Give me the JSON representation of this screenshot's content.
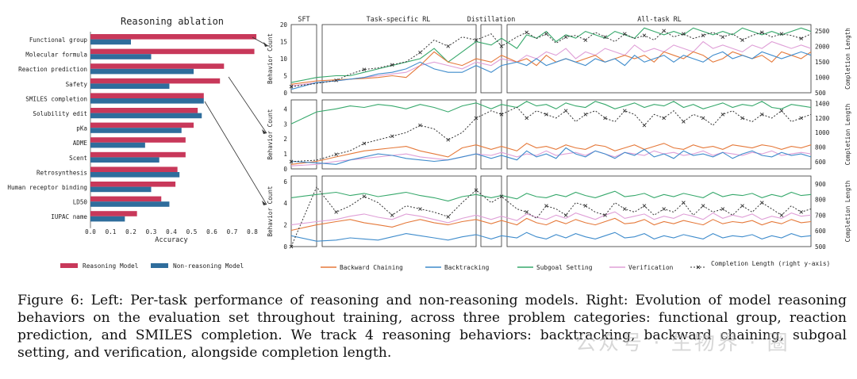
{
  "caption": "Figure 6: Left: Per-task performance of reasoning and non-reasoning models. Right: Evolution of model reasoning behaviors on the evaluation set throughout training, across three problem categories: functional group, reaction prediction, and SMILES completion. We track 4 reasoning behaviors: backtracking, backward chaining, subgoal setting, and verification, alongside completion length.",
  "watermark": "公众号 · 生物界 · 圈",
  "colors": {
    "reasoning": "#c8385a",
    "nonreasoning": "#2f6d9c",
    "backward": "#e5793a",
    "backtracking": "#3f8ccc",
    "subgoal": "#36a86b",
    "verification": "#df9fd7",
    "completion": "#333333"
  },
  "chart_data": [
    {
      "type": "bar",
      "title": "Reasoning ablation",
      "xlabel": "Accuracy",
      "xlim": [
        0.0,
        0.8
      ],
      "xticks": [
        "0.0",
        "0.1",
        "0.2",
        "0.3",
        "0.4",
        "0.5",
        "0.6",
        "0.7",
        "0.8"
      ],
      "categories": [
        "Functional group",
        "Molecular formula",
        "Reaction prediction",
        "Safety",
        "SMILES completion",
        "Solubility edit",
        "pKa",
        "ADME",
        "Scent",
        "Retrosynthesis",
        "Human receptor binding",
        "LD50",
        "IUPAC name"
      ],
      "series": [
        {
          "name": "Reasoning Model",
          "values": [
            0.82,
            0.81,
            0.66,
            0.64,
            0.56,
            0.53,
            0.51,
            0.47,
            0.47,
            0.43,
            0.42,
            0.35,
            0.23
          ]
        },
        {
          "name": "Non-reasoning Model",
          "values": [
            0.2,
            0.3,
            0.51,
            0.39,
            0.56,
            0.55,
            0.45,
            0.27,
            0.34,
            0.44,
            0.3,
            0.39,
            0.17
          ]
        }
      ],
      "legend": "bottom"
    },
    {
      "type": "line",
      "phases": [
        "SFT",
        "Task-specific RL",
        "Distillation",
        "All-task RL"
      ],
      "ylabel": "Behavior Count",
      "ylabel_right": "Completion Length",
      "legend": [
        "Backward Chaining",
        "Backtracking",
        "Subgoal Setting",
        "Verification",
        "Completion Length (right y-axis)"
      ],
      "rows": [
        {
          "yticks": [
            "0",
            "5",
            "10",
            "15",
            "20"
          ],
          "ylim": [
            0,
            20
          ],
          "y2ticks": [
            "500",
            "1000",
            "1500",
            "2000",
            "2500"
          ],
          "y2lim": [
            500,
            2700
          ],
          "series": {
            "backward": [
              2.5,
              3.5,
              3.8,
              4,
              4.2,
              4.5,
              5,
              4.5,
              8,
              12,
              9,
              8,
              10,
              9,
              11,
              9,
              10,
              8,
              11,
              9,
              10,
              9,
              10,
              11,
              9,
              10,
              11,
              10,
              11,
              9,
              12,
              11,
              10,
              12,
              11,
              9,
              10,
              12,
              11,
              10,
              11,
              9,
              12,
              11,
              10,
              12
            ],
            "backtracking": [
              1,
              3,
              3.5,
              4,
              4.5,
              5.5,
              6,
              7,
              9,
              7,
              6,
              6,
              8,
              6,
              8,
              9,
              8,
              10,
              8,
              9,
              10,
              9,
              8,
              10,
              9,
              10,
              8,
              11,
              9,
              10,
              11,
              9,
              11,
              10,
              9,
              11,
              12,
              10,
              11,
              10,
              12,
              11,
              10,
              11,
              12,
              11
            ],
            "subgoal": [
              3,
              4.5,
              5,
              5,
              6,
              7,
              8,
              9,
              10,
              13,
              9,
              12,
              15,
              14,
              16,
              13,
              17,
              16,
              18,
              15,
              17,
              16,
              18,
              17,
              16,
              18,
              17,
              16,
              19,
              18,
              17,
              18,
              17,
              19,
              18,
              17,
              18,
              17,
              19,
              18,
              17,
              18,
              17,
              18,
              19,
              18
            ],
            "verification": [
              2,
              3,
              3.5,
              4,
              4.5,
              5,
              5.5,
              6,
              8,
              9,
              8,
              7,
              9,
              8,
              10,
              9,
              11,
              10,
              12,
              11,
              13,
              10,
              12,
              11,
              13,
              12,
              11,
              14,
              12,
              13,
              12,
              14,
              13,
              12,
              15,
              13,
              14,
              13,
              12,
              14,
              13,
              15,
              14,
              13,
              14,
              13
            ],
            "completion": [
              700,
              800,
              900,
              1100,
              1250,
              1300,
              1400,
              1500,
              1800,
              2200,
              2000,
              2300,
              2200,
              2400,
              2000,
              2300,
              2450,
              2250,
              2400,
              2100,
              2300,
              2350,
              2200,
              2450,
              2300,
              2150,
              2400,
              2250,
              2350,
              2200,
              2500,
              2300,
              2400,
              2250,
              2350,
              2450,
              2300,
              2400,
              2200,
              2350,
              2450,
              2300,
              2400,
              2350,
              2250,
              2400
            ]
          }
        },
        {
          "yticks": [
            "0",
            "1",
            "2",
            "3",
            "4"
          ],
          "ylim": [
            0,
            4.6
          ],
          "y2ticks": [
            "600",
            "800",
            "1000",
            "1200",
            "1400"
          ],
          "y2lim": [
            500,
            1450
          ],
          "series": {
            "backward": [
              0.3,
              0.5,
              0.8,
              1,
              1.2,
              1.3,
              1.4,
              1.5,
              1.2,
              1,
              0.8,
              1.4,
              1.6,
              1.3,
              1.5,
              1.2,
              1.7,
              1.4,
              1.5,
              1.3,
              1.6,
              1.4,
              1.3,
              1.6,
              1.5,
              1.2,
              1.4,
              1.6,
              1.3,
              1.5,
              1.7,
              1.4,
              1.3,
              1.6,
              1.4,
              1.5,
              1.3,
              1.6,
              1.5,
              1.4,
              1.6,
              1.5,
              1.3,
              1.5,
              1.4,
              1.6
            ],
            "backtracking": [
              0.5,
              0.4,
              0.3,
              0.6,
              0.8,
              1,
              0.9,
              0.7,
              0.6,
              0.5,
              0.6,
              0.8,
              1,
              0.7,
              0.9,
              0.6,
              1.2,
              0.8,
              1,
              0.7,
              1.4,
              1,
              0.8,
              1.2,
              1,
              0.7,
              1.1,
              0.9,
              1.3,
              0.8,
              1,
              0.7,
              1.2,
              0.9,
              1,
              0.8,
              1.1,
              0.7,
              1,
              1.2,
              0.9,
              0.8,
              1.1,
              0.9,
              1,
              0.8
            ],
            "subgoal": [
              3,
              3.8,
              4,
              4.2,
              4.1,
              4.3,
              4.2,
              4,
              4.3,
              4.1,
              3.8,
              4.2,
              4.4,
              4,
              4.3,
              4.1,
              4.5,
              4.2,
              4.3,
              4,
              4.4,
              4.2,
              4.1,
              4.5,
              4.3,
              4,
              4.2,
              4.4,
              4.1,
              4.3,
              4.2,
              4.5,
              4.1,
              4.3,
              4,
              4.2,
              4.4,
              4.1,
              4.3,
              4.2,
              4.5,
              4.1,
              4,
              4.3,
              4.2,
              4.1
            ],
            "verification": [
              0.2,
              0.3,
              0.5,
              0.6,
              0.7,
              0.8,
              0.9,
              1,
              0.8,
              0.7,
              0.6,
              0.8,
              1,
              0.9,
              1.1,
              0.8,
              1,
              0.9,
              1.2,
              0.9,
              1,
              1.1,
              0.9,
              1.2,
              1,
              0.8,
              1.1,
              1,
              0.9,
              1.2,
              1,
              1.1,
              0.9,
              1,
              1.2,
              0.9,
              1.1,
              1,
              0.9,
              1.1,
              1,
              1.2,
              0.9,
              1,
              1.1,
              1
            ],
            "completion": [
              600,
              620,
              700,
              750,
              850,
              900,
              950,
              1000,
              1100,
              1050,
              900,
              1000,
              1200,
              1300,
              1250,
              1350,
              1200,
              1300,
              1250,
              1200,
              1300,
              1150,
              1250,
              1300,
              1200,
              1150,
              1300,
              1250,
              1100,
              1250,
              1200,
              1300,
              1150,
              1250,
              1200,
              1100,
              1250,
              1300,
              1200,
              1150,
              1250,
              1200,
              1300,
              1150,
              1200,
              1250
            ]
          }
        },
        {
          "yticks": [
            "0",
            "2",
            "4",
            "6"
          ],
          "ylim": [
            0,
            6.5
          ],
          "y2ticks": [
            "500",
            "600",
            "700",
            "800",
            "900"
          ],
          "y2lim": [
            500,
            950
          ],
          "series": {
            "backward": [
              1.5,
              2,
              2.3,
              2.5,
              2.2,
              2,
              1.8,
              2.2,
              2.5,
              2.2,
              2,
              2.3,
              2.5,
              2.1,
              2.4,
              2,
              2.6,
              2.2,
              2,
              2.4,
              2.1,
              2.5,
              2.2,
              2,
              2.3,
              2.6,
              2.1,
              2.2,
              2.5,
              2,
              2.3,
              2.1,
              2.4,
              2.2,
              2,
              2.5,
              2.1,
              2.3,
              2.2,
              2.4,
              2,
              2.3,
              2.1,
              2.5,
              2.2,
              2.3
            ],
            "backtracking": [
              1,
              0.5,
              0.6,
              0.8,
              0.7,
              0.6,
              0.9,
              1.2,
              1,
              0.8,
              0.6,
              0.9,
              1.1,
              0.7,
              1,
              0.8,
              1.3,
              0.9,
              0.7,
              1.1,
              0.8,
              1.2,
              0.9,
              0.7,
              1,
              1.3,
              0.8,
              0.9,
              1.2,
              0.7,
              1,
              0.8,
              1.1,
              0.9,
              0.7,
              1.2,
              0.8,
              1,
              0.9,
              1.1,
              0.7,
              1,
              0.8,
              1.2,
              0.9,
              1
            ],
            "subgoal": [
              4.5,
              4.8,
              5,
              4.7,
              4.9,
              4.6,
              4.8,
              5,
              4.7,
              4.5,
              4.2,
              4.6,
              4.8,
              4.5,
              4.7,
              4.4,
              4.9,
              4.6,
              4.5,
              4.8,
              4.6,
              5,
              4.7,
              4.5,
              4.8,
              5.1,
              4.6,
              4.7,
              4.9,
              4.5,
              4.8,
              4.6,
              4.9,
              4.7,
              4.5,
              5,
              4.6,
              4.8,
              4.7,
              4.9,
              4.5,
              4.8,
              4.6,
              5,
              4.7,
              4.8
            ],
            "verification": [
              2,
              2.3,
              2.5,
              2.8,
              3,
              2.7,
              2.5,
              3,
              2.8,
              2.5,
              2.2,
              2.6,
              2.9,
              2.5,
              2.8,
              2.4,
              3,
              2.7,
              2.5,
              2.9,
              2.6,
              3.1,
              2.8,
              2.5,
              2.9,
              3.2,
              2.6,
              2.8,
              3,
              2.5,
              2.8,
              2.6,
              3,
              2.8,
              2.5,
              3.1,
              2.6,
              2.9,
              2.7,
              3,
              2.5,
              2.8,
              2.6,
              3.1,
              2.8,
              2.9
            ],
            "completion": [
              500,
              880,
              720,
              760,
              820,
              780,
              700,
              760,
              740,
              720,
              690,
              780,
              860,
              780,
              820,
              740,
              720,
              680,
              760,
              740,
              700,
              780,
              760,
              720,
              700,
              780,
              740,
              720,
              760,
              700,
              740,
              720,
              780,
              700,
              760,
              720,
              740,
              700,
              760,
              720,
              780,
              740,
              700,
              760,
              720,
              740
            ]
          }
        }
      ]
    }
  ]
}
